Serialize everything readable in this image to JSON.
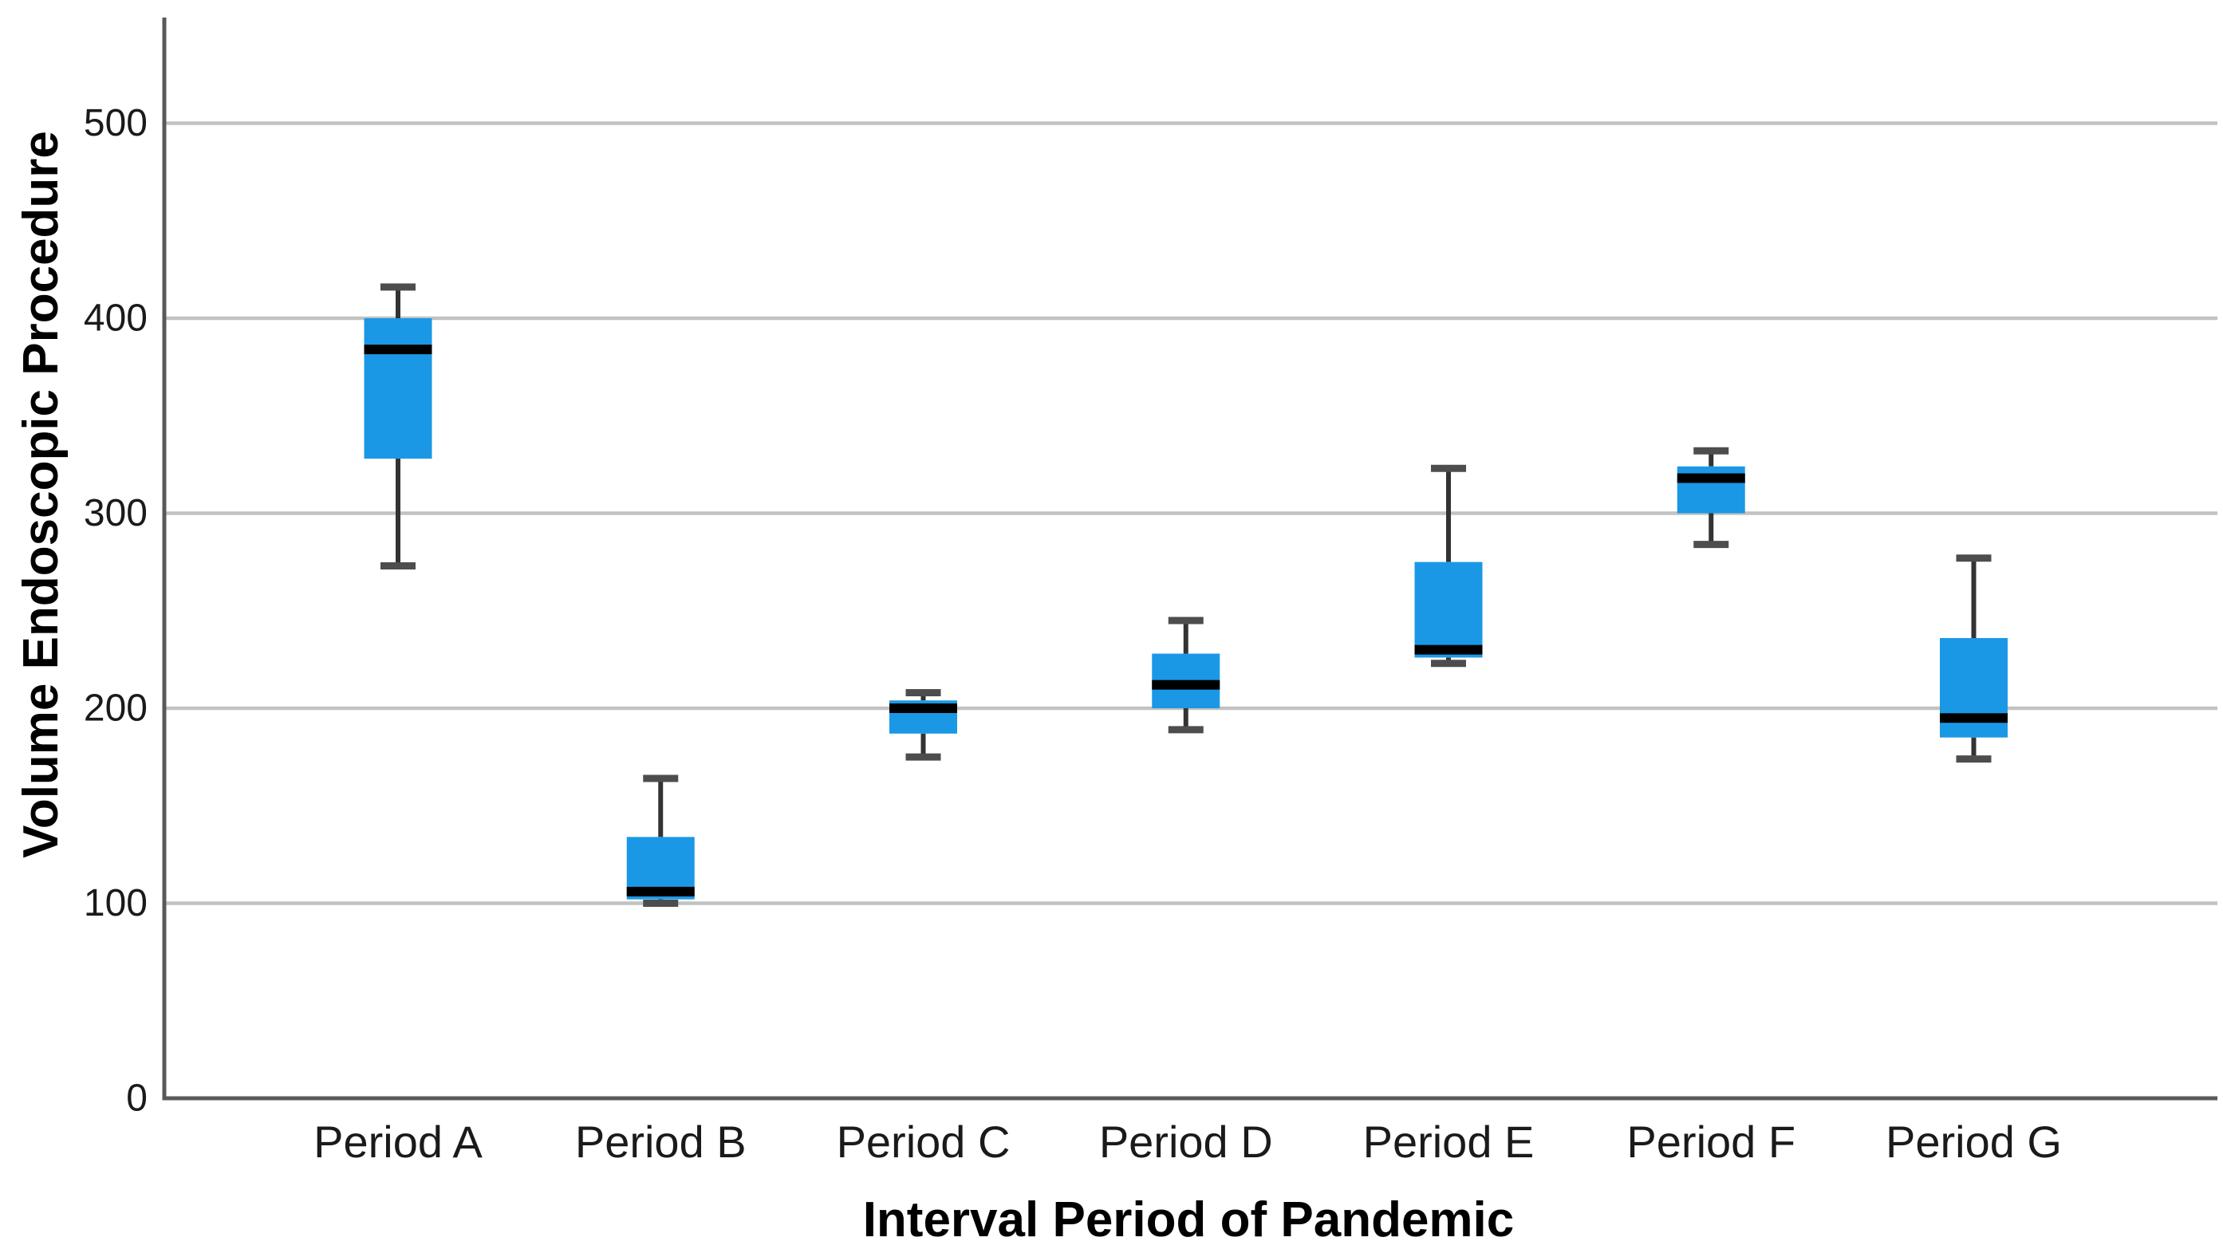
{
  "figure": {
    "background_color": "#ffffff"
  },
  "chart_data": {
    "type": "box",
    "title": "",
    "xlabel": "Interval Period of Pandemic",
    "ylabel": "Volume Endoscopic Procedure",
    "categories": [
      "Period A",
      "Period B",
      "Period C",
      "Period D",
      "Period E",
      "Period F",
      "Period G"
    ],
    "boxes": [
      {
        "category": "Period A",
        "min": 273,
        "q1": 328,
        "median": 384,
        "q3": 400,
        "max": 416
      },
      {
        "category": "Period B",
        "min": 100,
        "q1": 102,
        "median": 106,
        "q3": 134,
        "max": 164
      },
      {
        "category": "Period C",
        "min": 175,
        "q1": 187,
        "median": 200,
        "q3": 204,
        "max": 208
      },
      {
        "category": "Period D",
        "min": 189,
        "q1": 200,
        "median": 212,
        "q3": 228,
        "max": 245
      },
      {
        "category": "Period E",
        "min": 223,
        "q1": 226,
        "median": 230,
        "q3": 275,
        "max": 323
      },
      {
        "category": "Period F",
        "min": 284,
        "q1": 300,
        "median": 318,
        "q3": 324,
        "max": 332
      },
      {
        "category": "Period G",
        "min": 174,
        "q1": 185,
        "median": 195,
        "q3": 236,
        "max": 277
      }
    ],
    "y_ticks": [
      0,
      100,
      200,
      300,
      400,
      500
    ],
    "ylim": [
      0,
      550
    ],
    "grid": "horizontal-light-gray",
    "legend": "none",
    "colors": {
      "box_fill": "#1B98E5",
      "median_line": "#000000",
      "whisker_line": "#333333",
      "whisker_cap": "#4d4d4d",
      "gridline": "#c2c2c2",
      "axis_line": "#595959",
      "label_text": "#1a1a1a"
    }
  }
}
